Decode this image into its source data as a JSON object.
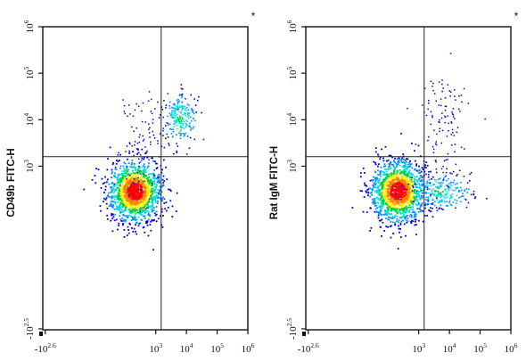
{
  "chart_data": [
    {
      "type": "scatter",
      "panel": "left",
      "title": "",
      "marker": "*",
      "xlabel": "",
      "ylabel": "CD49b FITC-H",
      "x_scale": "biexponential",
      "y_scale": "biexponential",
      "x_ticks": [
        {
          "value": -398,
          "base": "-10",
          "exp": "2.6"
        },
        {
          "value": 1000,
          "base": "10",
          "exp": "3"
        },
        {
          "value": 10000,
          "base": "10",
          "exp": "4"
        },
        {
          "value": 100000,
          "base": "10",
          "exp": "5"
        },
        {
          "value": 1000000,
          "base": "10",
          "exp": "6"
        }
      ],
      "y_ticks": [
        {
          "value": -316,
          "base": "-10",
          "exp": "2.5"
        },
        {
          "value": 1000,
          "base": "10",
          "exp": "3"
        },
        {
          "value": 10000,
          "base": "10",
          "exp": "4"
        },
        {
          "value": 100000,
          "base": "10",
          "exp": "5"
        },
        {
          "value": 1000000,
          "base": "10",
          "exp": "6"
        }
      ],
      "gates": {
        "x": 1500,
        "y": 1600
      },
      "populations": [
        {
          "label": "double-negative",
          "center": [
            200,
            300
          ],
          "spread": "dense"
        },
        {
          "label": "CD49b+",
          "center": [
            6000,
            11000
          ],
          "spread": "cluster"
        },
        {
          "label": "sparse-upper-left",
          "center": [
            400,
            3500
          ],
          "spread": "sparse"
        }
      ],
      "colors": [
        "#0000d0",
        "#0090ff",
        "#00e0e0",
        "#00d040",
        "#ffee00",
        "#ff8000",
        "#ff0000"
      ]
    },
    {
      "type": "scatter",
      "panel": "right",
      "title": "",
      "marker": "*",
      "xlabel": "",
      "ylabel": "Rat IgM FITC-H",
      "x_scale": "biexponential",
      "y_scale": "biexponential",
      "x_ticks": [
        {
          "value": -398,
          "base": "-10",
          "exp": "2.6"
        },
        {
          "value": 1000,
          "base": "10",
          "exp": "3"
        },
        {
          "value": 10000,
          "base": "10",
          "exp": "4"
        },
        {
          "value": 100000,
          "base": "10",
          "exp": "5"
        },
        {
          "value": 1000000,
          "base": "10",
          "exp": "6"
        }
      ],
      "y_ticks": [
        {
          "value": -316,
          "base": "-10",
          "exp": "2.5"
        },
        {
          "value": 1000,
          "base": "10",
          "exp": "3"
        },
        {
          "value": 10000,
          "base": "10",
          "exp": "4"
        },
        {
          "value": 100000,
          "base": "10",
          "exp": "5"
        },
        {
          "value": 1000000,
          "base": "10",
          "exp": "6"
        }
      ],
      "gates": {
        "x": 1500,
        "y": 1600
      },
      "populations": [
        {
          "label": "double-negative",
          "center": [
            200,
            300
          ],
          "spread": "dense"
        },
        {
          "label": "lower-right",
          "center": [
            5000,
            300
          ],
          "spread": "cluster"
        },
        {
          "label": "sparse-upper-right",
          "center": [
            6000,
            8000
          ],
          "spread": "sparse"
        }
      ],
      "colors": [
        "#0000d0",
        "#0090ff",
        "#00e0e0",
        "#00d040",
        "#ffee00",
        "#ff8000",
        "#ff0000"
      ]
    }
  ]
}
